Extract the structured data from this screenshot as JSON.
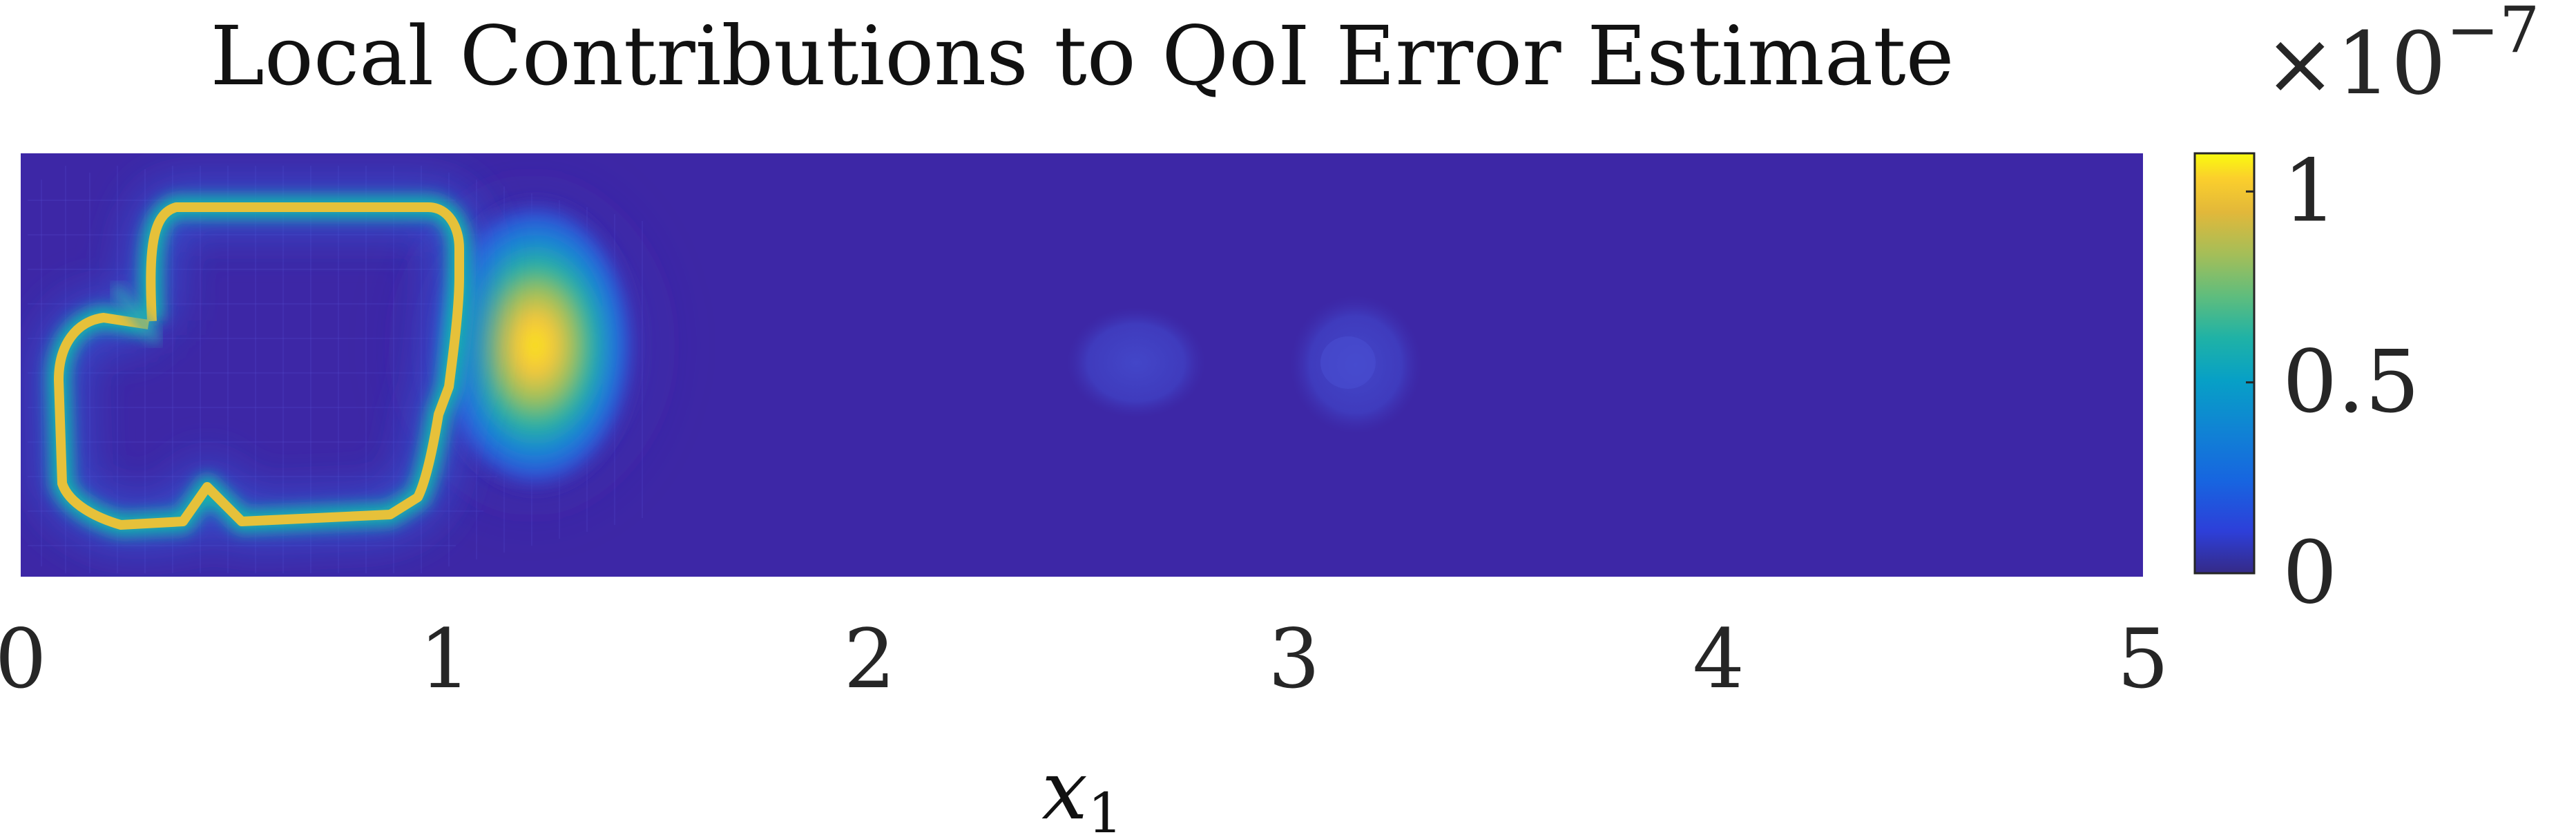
{
  "chart_data": {
    "type": "heatmap",
    "title": "Local Contributions to QoI Error Estimate",
    "xlabel": "x",
    "xlabel_subscript": "1",
    "xlim": [
      0,
      5
    ],
    "x_ticks": [
      "0",
      "1",
      "2",
      "3",
      "4",
      "5"
    ],
    "y_ticks": [],
    "colorbar": {
      "multiplier_base": "×10",
      "multiplier_exponent": "−7",
      "range": [
        0,
        1.1
      ],
      "ticks": [
        "0",
        "0.5",
        "1"
      ],
      "colormap": "parula"
    },
    "features": [
      {
        "kind": "ring",
        "center": [
          0.55,
          0.5
        ],
        "value_peak": 0.9
      },
      {
        "kind": "blob",
        "center": [
          1.2,
          0.5
        ],
        "value_peak": 1.05
      },
      {
        "kind": "faint-blob",
        "center": [
          2.62,
          0.5
        ],
        "value_peak": 0.05
      },
      {
        "kind": "faint-blob",
        "center": [
          3.15,
          0.5
        ],
        "value_peak": 0.07
      }
    ],
    "colors": {
      "background": "#3d27a6",
      "low": "#352a87",
      "mid": "#11b8b1",
      "high": "#f9f713"
    }
  }
}
